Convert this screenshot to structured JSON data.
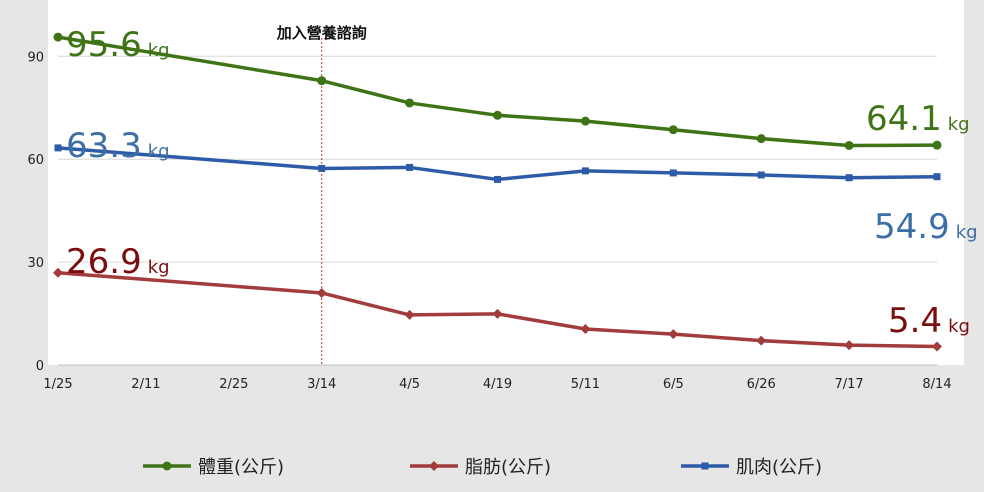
{
  "chart_data": {
    "type": "line",
    "categories": [
      "1/25",
      "2/11",
      "2/25",
      "3/14",
      "4/5",
      "4/19",
      "5/11",
      "6/5",
      "6/26",
      "7/17",
      "8/14"
    ],
    "ylim": [
      0,
      100
    ],
    "yticks": [
      0,
      30,
      60,
      90
    ],
    "grid": true,
    "legend_position": "bottom",
    "series": [
      {
        "name": "體重(公斤)",
        "color": "#3f7416",
        "marker": "circle",
        "points": [
          [
            0,
            95.6
          ],
          [
            3,
            82.9
          ],
          [
            4,
            76.4
          ],
          [
            5,
            72.8
          ],
          [
            6,
            71.1
          ],
          [
            7,
            68.6
          ],
          [
            8,
            66.0
          ],
          [
            9,
            64.0
          ],
          [
            10,
            64.1
          ]
        ]
      },
      {
        "name": "脂肪(公斤)",
        "color": "#a23c3c",
        "marker": "diamond",
        "points": [
          [
            0,
            26.9
          ],
          [
            3,
            21.0
          ],
          [
            4,
            14.6
          ],
          [
            5,
            14.9
          ],
          [
            6,
            10.5
          ],
          [
            7,
            9.0
          ],
          [
            8,
            7.1
          ],
          [
            9,
            5.8
          ],
          [
            10,
            5.4
          ]
        ]
      },
      {
        "name": "肌肉(公斤)",
        "color": "#2e5ba8",
        "marker": "square",
        "points": [
          [
            0,
            63.3
          ],
          [
            3,
            57.3
          ],
          [
            4,
            57.6
          ],
          [
            5,
            54.1
          ],
          [
            6,
            56.6
          ],
          [
            7,
            56.0
          ],
          [
            8,
            55.4
          ],
          [
            9,
            54.6
          ],
          [
            10,
            54.9
          ]
        ]
      }
    ],
    "annotations": [
      {
        "name": "start-weight",
        "value": "95.6",
        "unit": "kg",
        "color": "#3f7416"
      },
      {
        "name": "end-weight",
        "value": "64.1",
        "unit": "kg",
        "color": "#3f7416"
      },
      {
        "name": "start-muscle",
        "value": "63.3",
        "unit": "kg",
        "color": "#3b6fa6"
      },
      {
        "name": "end-muscle",
        "value": "54.9",
        "unit": "kg",
        "color": "#3b6fa6"
      },
      {
        "name": "start-fat",
        "value": "26.9",
        "unit": "kg",
        "color": "#7a0d0d"
      },
      {
        "name": "end-fat",
        "value": "5.4",
        "unit": "kg",
        "color": "#7a0d0d"
      }
    ],
    "event_marker": {
      "category_index": 3,
      "label": "加入營養諮詢",
      "color": "#c0392b"
    }
  }
}
